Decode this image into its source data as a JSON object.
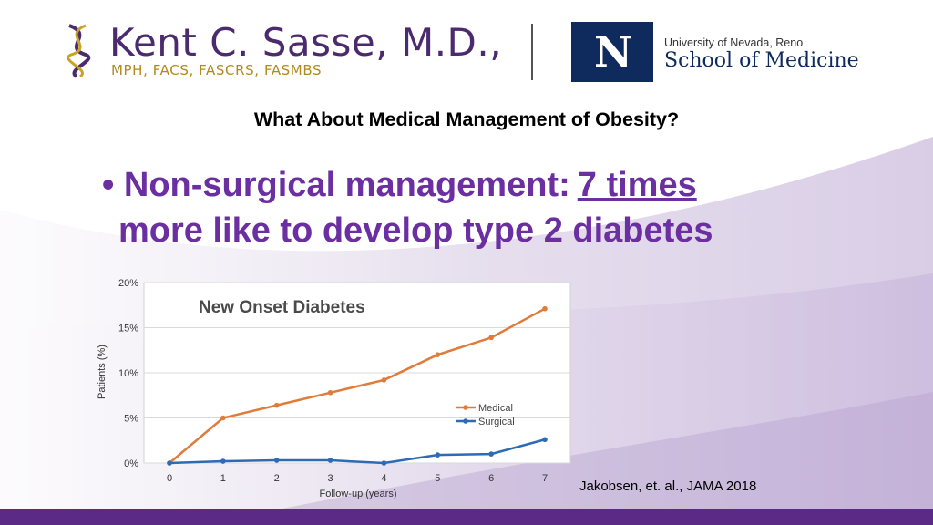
{
  "header": {
    "brand_name": "Kent C. Sasse, M.D.,",
    "brand_credentials": "MPH, FACS, FASCRS, FASMBS",
    "unr_university": "University of Nevada, Reno",
    "unr_school": "School of Medicine"
  },
  "slide": {
    "title": "What About Medical Management of Obesity?",
    "bullet_text": "Non-surgical management:",
    "bullet_emphasis": "7 times",
    "bullet_line2": "more like to develop type 2 diabetes",
    "citation": "Jakobsen, et. al., JAMA 2018"
  },
  "colors": {
    "accent_purple": "#6b2fa1",
    "medical": "#e07b39",
    "surgical": "#2e6bb3"
  },
  "chart_data": {
    "type": "line",
    "title": "New Onset Diabetes",
    "xlabel": "Follow-up (years)",
    "ylabel": "Patients (%)",
    "x": [
      0,
      1,
      2,
      3,
      4,
      5,
      6,
      7
    ],
    "x_tick_labels": [
      "0",
      "1",
      "2",
      "3",
      "4",
      "5",
      "6",
      "7"
    ],
    "y_tick_labels": [
      "0%",
      "5%",
      "10%",
      "15%",
      "20%"
    ],
    "ylim": [
      0,
      20
    ],
    "grid": true,
    "legend": "right",
    "series": [
      {
        "name": "Medical",
        "values": [
          0,
          5.0,
          6.4,
          7.8,
          9.2,
          12.0,
          13.9,
          17.1
        ]
      },
      {
        "name": "Surgical",
        "values": [
          0,
          0.2,
          0.3,
          0.3,
          0.0,
          0.9,
          1.0,
          2.6
        ]
      }
    ]
  }
}
